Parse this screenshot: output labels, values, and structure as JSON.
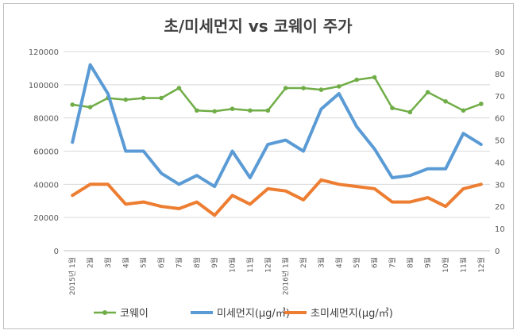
{
  "chart_data": {
    "type": "line",
    "title": "초/미세먼지 vs 코웨이 주가",
    "categories": [
      "2015년 1월",
      "2월",
      "3월",
      "4월",
      "5월",
      "6월",
      "7월",
      "8월",
      "9월",
      "10월",
      "11월",
      "12월",
      "2016년 1월",
      "2월",
      "3월",
      "4월",
      "5월",
      "6월",
      "7월",
      "8월",
      "9월",
      "10월",
      "11월",
      "12월"
    ],
    "y_left": {
      "range": [
        0,
        120000
      ],
      "ticks": [
        "0",
        "20000",
        "40000",
        "60000",
        "80000",
        "100000",
        "120000"
      ]
    },
    "y_right": {
      "range": [
        0,
        90
      ],
      "ticks": [
        "0",
        "10",
        "20",
        "30",
        "40",
        "50",
        "60",
        "70",
        "80",
        "90"
      ]
    },
    "grid": true,
    "legend_position": "bottom",
    "series": [
      {
        "name": "코웨이",
        "axis": "left",
        "color": "#70ad47",
        "line_width": 2.5,
        "marker": true,
        "values": [
          88000,
          86500,
          92000,
          91000,
          92000,
          92000,
          98000,
          84500,
          84000,
          85500,
          84500,
          84500,
          98000,
          98000,
          97000,
          99000,
          103000,
          104500,
          86000,
          83500,
          95500,
          90000,
          84500,
          88500
        ]
      },
      {
        "name": "미세먼지(μg/㎥)",
        "axis": "right",
        "color": "#5b9bd5",
        "line_width": 4,
        "marker": false,
        "values": [
          49,
          84,
          71,
          45,
          45,
          35,
          30,
          34,
          29,
          45,
          33,
          48,
          50,
          45,
          64,
          71,
          56,
          46,
          33,
          34,
          37,
          37,
          53,
          48
        ]
      },
      {
        "name": "초미세먼지(μg/㎥)",
        "axis": "right",
        "color": "#ed7d31",
        "line_width": 4,
        "marker": false,
        "values": [
          25,
          30,
          30,
          21,
          22,
          20,
          19,
          22,
          16,
          25,
          21,
          28,
          27,
          23,
          32,
          30,
          29,
          28,
          22,
          22,
          24,
          20,
          28,
          30
        ]
      }
    ]
  }
}
